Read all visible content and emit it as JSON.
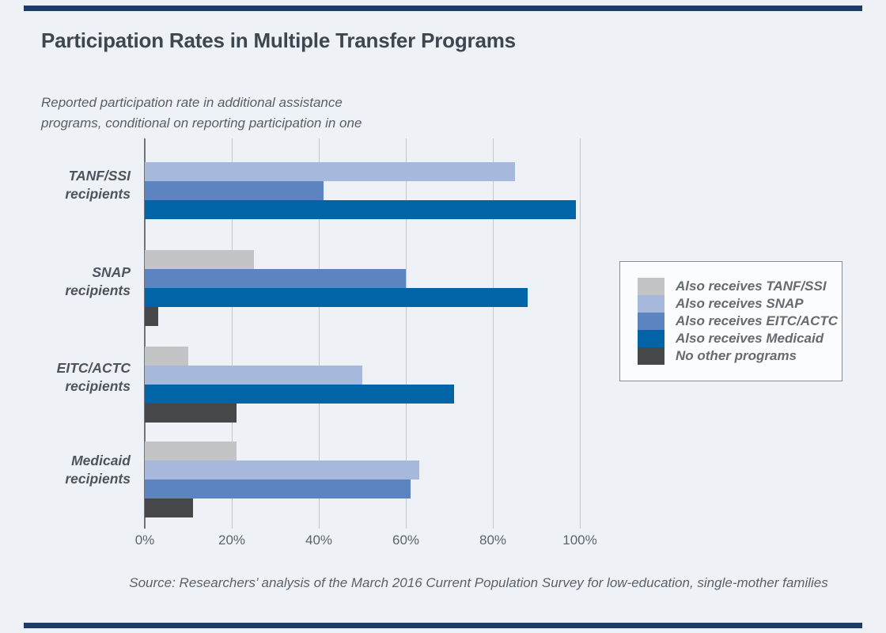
{
  "colors": {
    "background": "#eef2f7",
    "rule": "#1d3c6b",
    "gridline": "#c3c8cd",
    "axis_line": "#6e7379"
  },
  "chart_data": {
    "type": "bar",
    "orientation": "horizontal",
    "title": "Participation Rates in Multiple Transfer Programs",
    "subtitle": "Reported participation rate in additional assistance\nprograms, conditional on reporting participation in one",
    "source": "Source: Researchers’ analysis of the March 2016 Current Population Survey for low-education, single-mother families",
    "x_axis": {
      "min": 0,
      "max": 100,
      "tick_labels": [
        "0%",
        "20%",
        "40%",
        "60%",
        "80%",
        "100%"
      ],
      "grid": true
    },
    "legend_position": "right",
    "series": [
      {
        "name": "Also receives TANF/SSI",
        "color": "#c2c4c6"
      },
      {
        "name": "Also receives SNAP",
        "color": "#a6b9dd"
      },
      {
        "name": "Also receives EITC/ACTC",
        "color": "#5b84c1"
      },
      {
        "name": "Also receives Medicaid",
        "color": "#0064a7"
      },
      {
        "name": "No other programs",
        "color": "#454749"
      }
    ],
    "groups": [
      {
        "label": "TANF/SSI recipients",
        "bars": [
          {
            "series": "Also receives SNAP",
            "value": 85
          },
          {
            "series": "Also receives EITC/ACTC",
            "value": 41
          },
          {
            "series": "Also receives Medicaid",
            "value": 99
          }
        ]
      },
      {
        "label": "SNAP recipients",
        "bars": [
          {
            "series": "Also receives TANF/SSI",
            "value": 25
          },
          {
            "series": "Also receives EITC/ACTC",
            "value": 60
          },
          {
            "series": "Also receives Medicaid",
            "value": 88
          },
          {
            "series": "No other programs",
            "value": 3
          }
        ]
      },
      {
        "label": "EITC/ACTC recipients",
        "bars": [
          {
            "series": "Also receives TANF/SSI",
            "value": 10
          },
          {
            "series": "Also receives SNAP",
            "value": 50
          },
          {
            "series": "Also receives Medicaid",
            "value": 71
          },
          {
            "series": "No other programs",
            "value": 21
          }
        ]
      },
      {
        "label": "Medicaid recipients",
        "bars": [
          {
            "series": "Also receives TANF/SSI",
            "value": 21
          },
          {
            "series": "Also receives SNAP",
            "value": 63
          },
          {
            "series": "Also receives EITC/ACTC",
            "value": 61
          },
          {
            "series": "No other programs",
            "value": 11
          }
        ]
      }
    ]
  }
}
